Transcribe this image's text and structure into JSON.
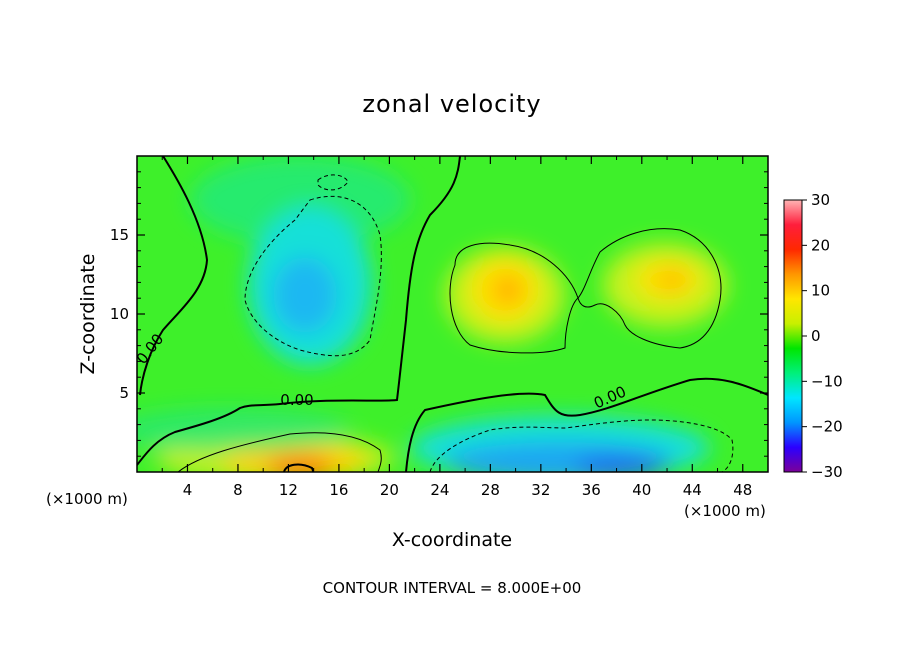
{
  "chart_data": {
    "type": "heatmap",
    "title": "zonal velocity",
    "xlabel": "X-coordinate",
    "ylabel": "Z-coordinate",
    "x_unit_left": "(×1000 m)",
    "x_unit_right": "(×1000 m)",
    "xlim": [
      0,
      50
    ],
    "ylim": [
      0,
      20
    ],
    "x_ticks": [
      "4",
      "8",
      "12",
      "16",
      "20",
      "24",
      "28",
      "32",
      "36",
      "40",
      "44",
      "48"
    ],
    "y_ticks": [
      "5",
      "10",
      "15"
    ],
    "colorbar": {
      "range": [
        -30,
        30
      ],
      "ticks": [
        "30",
        "20",
        "10",
        "0",
        "-10",
        "-20",
        "-30"
      ],
      "colors": [
        "#7b0099",
        "#2b00ff",
        "#0096ff",
        "#00e6ff",
        "#00f07a",
        "#00e600",
        "#c8f000",
        "#ffe600",
        "#ff9600",
        "#ff2800",
        "#ff1e3c",
        "#ffb4b4"
      ]
    },
    "contour_interval_text": "CONTOUR INTERVAL = 8.000E+00",
    "contour_labels": [
      "0.00",
      "0.00",
      "0.00"
    ],
    "features": [
      {
        "x": 12,
        "z": 11,
        "value": -12
      },
      {
        "x": 15,
        "z": 1,
        "value": 15
      },
      {
        "x": 29.5,
        "z": 11.5,
        "value": 14
      },
      {
        "x": 42.5,
        "z": 12,
        "value": 13
      },
      {
        "x": 38,
        "z": 1,
        "value": -14
      }
    ]
  }
}
